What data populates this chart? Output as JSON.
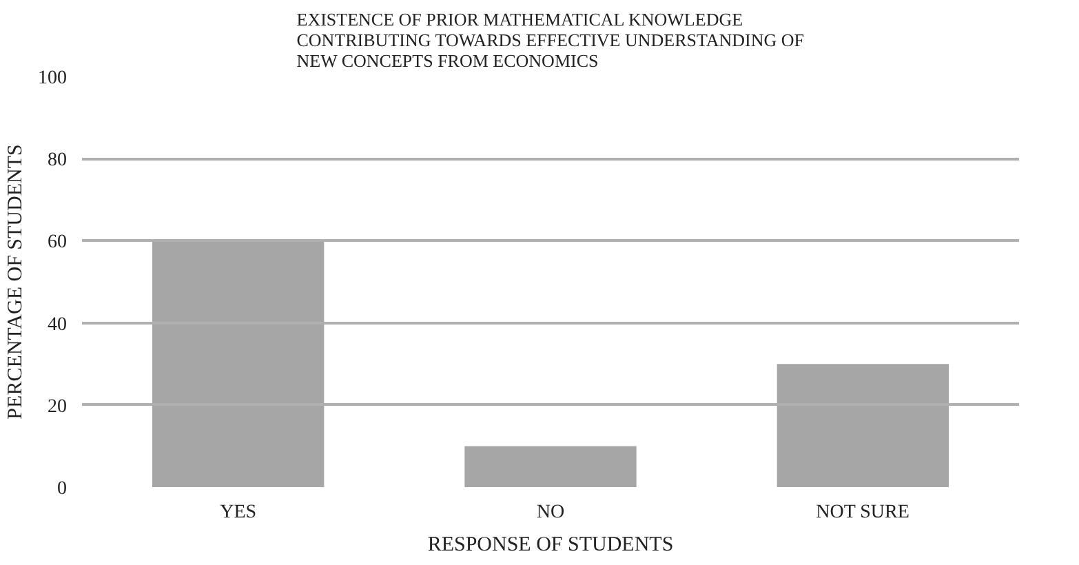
{
  "chart_data": {
    "type": "bar",
    "title": "EXISTENCE OF PRIOR MATHEMATICAL KNOWLEDGE\nCONTRIBUTING TOWARDS EFFECTIVE UNDERSTANDING OF\nNEW CONCEPTS FROM ECONOMICS",
    "xlabel": "RESPONSE OF STUDENTS",
    "ylabel": "PERCENTAGE OF STUDENTS",
    "categories": [
      "YES",
      "NO",
      "NOT SURE"
    ],
    "values": [
      60,
      10,
      30
    ],
    "color": "#a6a6a6",
    "ylim": [
      0,
      100
    ],
    "yticks": [
      0,
      20,
      40,
      60,
      80,
      100
    ],
    "grid": "y"
  }
}
